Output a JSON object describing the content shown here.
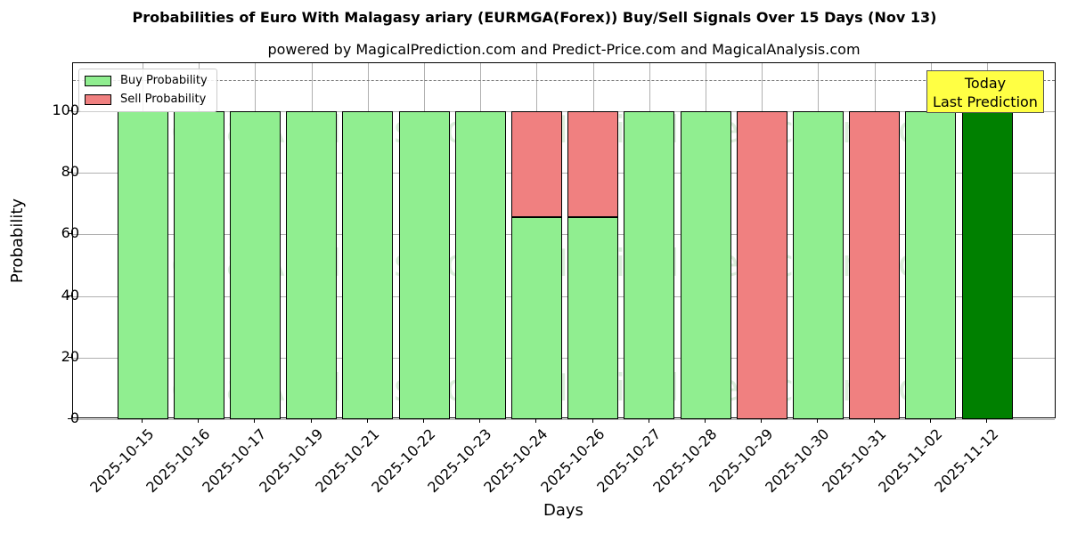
{
  "chart_data": {
    "type": "bar",
    "stacked": true,
    "title": "Probabilities of Euro With Malagasy ariary (EURMGA(Forex)) Buy/Sell Signals Over 15 Days (Nov 13)",
    "subtitle": "powered by MagicalPrediction.com and Predict-Price.com and MagicalAnalysis.com",
    "xlabel": "Days",
    "ylabel": "Probability",
    "ylim": [
      0,
      115
    ],
    "yticks": [
      0,
      20,
      40,
      60,
      80,
      100
    ],
    "grid": true,
    "legend_position": "upper left",
    "reference_line": 110,
    "categories": [
      "2025-10-15",
      "2025-10-16",
      "2025-10-17",
      "2025-10-19",
      "2025-10-21",
      "2025-10-22",
      "2025-10-23",
      "2025-10-24",
      "2025-10-26",
      "2025-10-27",
      "2025-10-28",
      "2025-10-29",
      "2025-10-30",
      "2025-10-31",
      "2025-11-02",
      "2025-11-12"
    ],
    "series": [
      {
        "name": "Buy Probability",
        "color": "#90ee90",
        "values": [
          100,
          100,
          100,
          100,
          100,
          100,
          100,
          65.5,
          65.5,
          100,
          100,
          0,
          100,
          0,
          100,
          100
        ]
      },
      {
        "name": "Sell Probability",
        "color": "#f08080",
        "values": [
          0,
          0,
          0,
          0,
          0,
          0,
          0,
          34.5,
          34.5,
          0,
          0,
          100,
          0,
          100,
          0,
          0
        ]
      }
    ],
    "highlight": {
      "index": 15,
      "color": "#008000"
    },
    "annotation": {
      "line1": "Today",
      "line2": "Last Prediction",
      "color": "#ffff44"
    },
    "watermarks": [
      "MagicalAnalysis.com",
      "MagicalPrediction.com"
    ]
  }
}
